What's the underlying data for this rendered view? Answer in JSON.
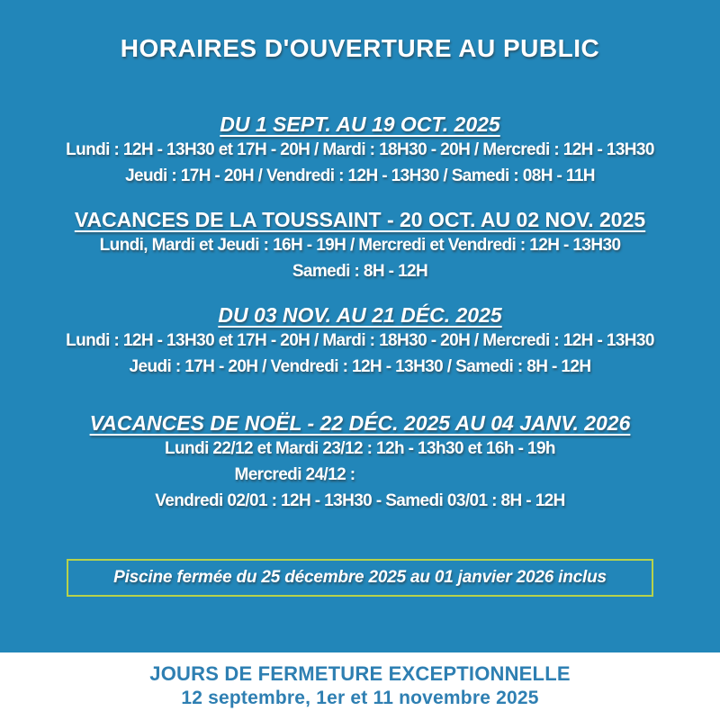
{
  "page": {
    "title": "HORAIRES D'OUVERTURE AU PUBLIC",
    "background_color": "#2286b9",
    "text_color": "#ffffff"
  },
  "sections": [
    {
      "heading": "DU 1 SEPT. AU 19 OCT. 2025",
      "lines": [
        "Lundi : 12H - 13H30 et 17H - 20H / Mardi : 18H30 - 20H / Mercredi : 12H - 13H30",
        "Jeudi : 17H - 20H / Vendredi : 12H - 13H30 / Samedi : 08H - 11H"
      ]
    },
    {
      "heading": "VACANCES DE LA TOUSSAINT - 20 OCT. AU 02 NOV. 2025",
      "lines": [
        "Lundi, Mardi et Jeudi : 16H - 19H / Mercredi et Vendredi : 12H - 13H30",
        "Samedi : 8H - 12H"
      ]
    },
    {
      "heading": "DU 03 NOV. AU 21 DÉC. 2025",
      "lines": [
        "Lundi : 12H - 13H30 et 17H - 20H / Mardi : 18H30 - 20H / Mercredi : 12H - 13H30",
        "Jeudi : 17H - 20H / Vendredi : 12H - 13H30 / Samedi : 8H - 12H"
      ]
    },
    {
      "heading": "VACANCES DE NOËL - 22 DÉC. 2025 AU 04 JANV. 2026",
      "lines": [
        "Lundi 22/12 et Mardi 23/12 : 12h - 13h30 et 16h - 19h",
        "Mercredi 24/12 :",
        "Vendredi 02/01 : 12H - 13H30 - Samedi 03/01 : 8H - 12H"
      ]
    }
  ],
  "notice": {
    "text": "Piscine fermée du 25 décembre 2025 au 01 janvier 2026 inclus",
    "border_color": "#b7d24b"
  },
  "footer": {
    "line1": "JOURS DE FERMETURE EXCEPTIONNELLE",
    "line2": "12 septembre, 1er et 11 novembre 2025",
    "text_color": "#2e7fb2",
    "background_color": "#ffffff"
  }
}
